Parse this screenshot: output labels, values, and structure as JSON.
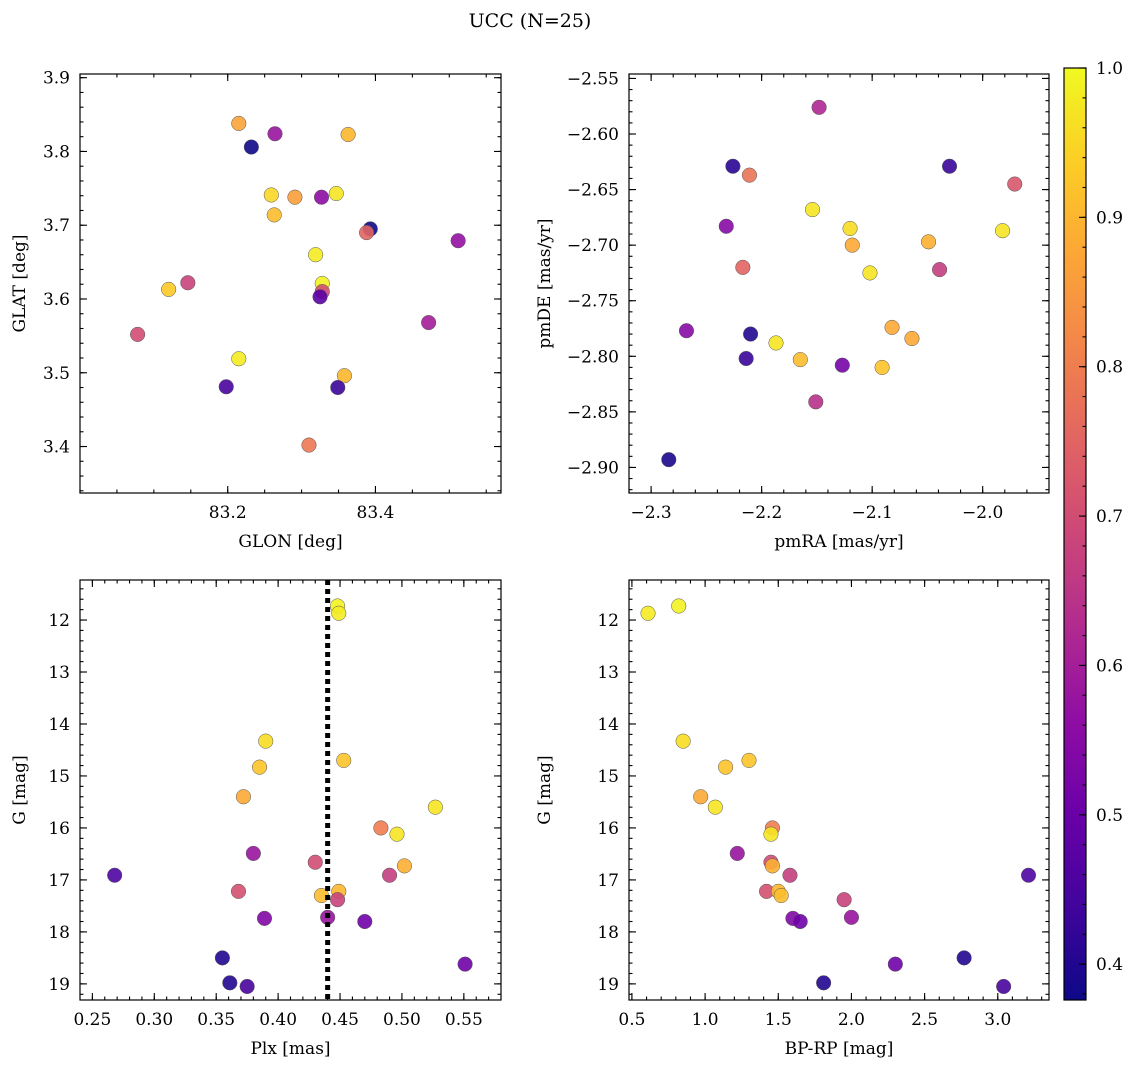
{
  "chart_data": [
    {
      "type": "scatter",
      "xlabel": "GLON [deg]",
      "ylabel": "GLAT [deg]",
      "xlim": [
        83.0,
        83.57
      ],
      "ylim": [
        3.337,
        3.905
      ],
      "xticks": [
        "83.2",
        "83.4"
      ],
      "yticks": [
        "3.4",
        "3.5",
        "3.6",
        "3.7",
        "3.8",
        "3.9"
      ],
      "points": [
        {
          "x": 83.215,
          "y": 3.838,
          "c": 0.87
        },
        {
          "x": 83.264,
          "y": 3.824,
          "c": 0.58
        },
        {
          "x": 83.363,
          "y": 3.823,
          "c": 0.9
        },
        {
          "x": 83.232,
          "y": 3.806,
          "c": 0.38
        },
        {
          "x": 83.259,
          "y": 3.741,
          "c": 0.95
        },
        {
          "x": 83.347,
          "y": 3.743,
          "c": 0.97
        },
        {
          "x": 83.291,
          "y": 3.738,
          "c": 0.86
        },
        {
          "x": 83.327,
          "y": 3.738,
          "c": 0.56
        },
        {
          "x": 83.263,
          "y": 3.714,
          "c": 0.91
        },
        {
          "x": 83.393,
          "y": 3.695,
          "c": 0.38
        },
        {
          "x": 83.388,
          "y": 3.69,
          "c": 0.75
        },
        {
          "x": 83.512,
          "y": 3.679,
          "c": 0.57
        },
        {
          "x": 83.319,
          "y": 3.66,
          "c": 0.98
        },
        {
          "x": 83.146,
          "y": 3.622,
          "c": 0.68
        },
        {
          "x": 83.328,
          "y": 3.621,
          "c": 0.99
        },
        {
          "x": 83.12,
          "y": 3.613,
          "c": 0.93
        },
        {
          "x": 83.328,
          "y": 3.61,
          "c": 0.7
        },
        {
          "x": 83.325,
          "y": 3.603,
          "c": 0.48
        },
        {
          "x": 83.472,
          "y": 3.568,
          "c": 0.6
        },
        {
          "x": 83.078,
          "y": 3.552,
          "c": 0.7
        },
        {
          "x": 83.215,
          "y": 3.519,
          "c": 0.98
        },
        {
          "x": 83.358,
          "y": 3.496,
          "c": 0.9
        },
        {
          "x": 83.198,
          "y": 3.481,
          "c": 0.45
        },
        {
          "x": 83.349,
          "y": 3.48,
          "c": 0.43
        },
        {
          "x": 83.31,
          "y": 3.402,
          "c": 0.79
        }
      ]
    },
    {
      "type": "scatter",
      "xlabel": "pmRA [mas/yr]",
      "ylabel": "pmDE [mas/yr]",
      "xlim": [
        -2.32,
        -1.94
      ],
      "ylim": [
        -2.923,
        -2.546
      ],
      "xticks": [
        "−2.3",
        "−2.2",
        "−2.1",
        "−2.0"
      ],
      "yticks": [
        "−2.55",
        "−2.60",
        "−2.65",
        "−2.70",
        "−2.75",
        "−2.80",
        "−2.85",
        "−2.90"
      ],
      "points": [
        {
          "x": -2.148,
          "y": -2.576,
          "c": 0.62
        },
        {
          "x": -2.226,
          "y": -2.629,
          "c": 0.41
        },
        {
          "x": -2.03,
          "y": -2.629,
          "c": 0.43
        },
        {
          "x": -2.211,
          "y": -2.637,
          "c": 0.78
        },
        {
          "x": -1.971,
          "y": -2.645,
          "c": 0.72
        },
        {
          "x": -2.154,
          "y": -2.668,
          "c": 0.97
        },
        {
          "x": -2.232,
          "y": -2.683,
          "c": 0.55
        },
        {
          "x": -2.12,
          "y": -2.685,
          "c": 0.96
        },
        {
          "x": -1.982,
          "y": -2.687,
          "c": 0.97
        },
        {
          "x": -2.049,
          "y": -2.697,
          "c": 0.89
        },
        {
          "x": -2.118,
          "y": -2.7,
          "c": 0.88
        },
        {
          "x": -2.217,
          "y": -2.72,
          "c": 0.75
        },
        {
          "x": -2.039,
          "y": -2.722,
          "c": 0.67
        },
        {
          "x": -2.102,
          "y": -2.725,
          "c": 0.97
        },
        {
          "x": -2.082,
          "y": -2.774,
          "c": 0.88
        },
        {
          "x": -2.268,
          "y": -2.777,
          "c": 0.55
        },
        {
          "x": -2.21,
          "y": -2.78,
          "c": 0.4
        },
        {
          "x": -2.064,
          "y": -2.784,
          "c": 0.88
        },
        {
          "x": -2.187,
          "y": -2.788,
          "c": 0.97
        },
        {
          "x": -2.214,
          "y": -2.802,
          "c": 0.43
        },
        {
          "x": -2.165,
          "y": -2.803,
          "c": 0.91
        },
        {
          "x": -2.127,
          "y": -2.808,
          "c": 0.52
        },
        {
          "x": -2.091,
          "y": -2.81,
          "c": 0.92
        },
        {
          "x": -2.151,
          "y": -2.841,
          "c": 0.64
        },
        {
          "x": -2.284,
          "y": -2.893,
          "c": 0.39
        }
      ]
    },
    {
      "type": "scatter",
      "xlabel": "Plx [mas]",
      "ylabel": "G [mag]",
      "xlim": [
        0.24,
        0.58
      ],
      "ylim": [
        19.31,
        11.23
      ],
      "xticks": [
        "0.25",
        "0.30",
        "0.35",
        "0.40",
        "0.45",
        "0.50",
        "0.55"
      ],
      "yticks": [
        "12",
        "13",
        "14",
        "15",
        "16",
        "17",
        "18",
        "19"
      ],
      "vline": 0.44,
      "points": [
        {
          "x": 0.448,
          "y": 11.73,
          "c": 0.99
        },
        {
          "x": 0.449,
          "y": 11.87,
          "c": 0.98
        },
        {
          "x": 0.39,
          "y": 14.33,
          "c": 0.96
        },
        {
          "x": 0.453,
          "y": 14.7,
          "c": 0.92
        },
        {
          "x": 0.385,
          "y": 14.83,
          "c": 0.92
        },
        {
          "x": 0.372,
          "y": 15.4,
          "c": 0.88
        },
        {
          "x": 0.527,
          "y": 15.6,
          "c": 0.97
        },
        {
          "x": 0.483,
          "y": 16.0,
          "c": 0.8
        },
        {
          "x": 0.496,
          "y": 16.12,
          "c": 0.97
        },
        {
          "x": 0.38,
          "y": 16.49,
          "c": 0.58
        },
        {
          "x": 0.43,
          "y": 16.66,
          "c": 0.7
        },
        {
          "x": 0.502,
          "y": 16.73,
          "c": 0.89
        },
        {
          "x": 0.268,
          "y": 16.91,
          "c": 0.46
        },
        {
          "x": 0.49,
          "y": 16.91,
          "c": 0.67
        },
        {
          "x": 0.368,
          "y": 17.22,
          "c": 0.71
        },
        {
          "x": 0.449,
          "y": 17.22,
          "c": 0.9
        },
        {
          "x": 0.435,
          "y": 17.3,
          "c": 0.91
        },
        {
          "x": 0.448,
          "y": 17.38,
          "c": 0.68
        },
        {
          "x": 0.44,
          "y": 17.72,
          "c": 0.58
        },
        {
          "x": 0.389,
          "y": 17.74,
          "c": 0.54
        },
        {
          "x": 0.47,
          "y": 17.8,
          "c": 0.51
        },
        {
          "x": 0.355,
          "y": 18.5,
          "c": 0.4
        },
        {
          "x": 0.551,
          "y": 18.62,
          "c": 0.51
        },
        {
          "x": 0.361,
          "y": 18.98,
          "c": 0.4
        },
        {
          "x": 0.375,
          "y": 19.05,
          "c": 0.45
        }
      ]
    },
    {
      "type": "scatter",
      "xlabel": "BP-RP [mag]",
      "ylabel": "G [mag]",
      "xlim": [
        0.48,
        3.35
      ],
      "ylim": [
        19.31,
        11.23
      ],
      "xticks": [
        "0.5",
        "1.0",
        "1.5",
        "2.0",
        "2.5",
        "3.0"
      ],
      "yticks": [
        "12",
        "13",
        "14",
        "15",
        "16",
        "17",
        "18",
        "19"
      ],
      "points": [
        {
          "x": 0.82,
          "y": 11.73,
          "c": 0.99
        },
        {
          "x": 0.61,
          "y": 11.87,
          "c": 0.98
        },
        {
          "x": 0.85,
          "y": 14.33,
          "c": 0.96
        },
        {
          "x": 1.3,
          "y": 14.7,
          "c": 0.92
        },
        {
          "x": 1.14,
          "y": 14.83,
          "c": 0.92
        },
        {
          "x": 0.97,
          "y": 15.4,
          "c": 0.88
        },
        {
          "x": 1.07,
          "y": 15.6,
          "c": 0.97
        },
        {
          "x": 1.46,
          "y": 16.0,
          "c": 0.8
        },
        {
          "x": 1.45,
          "y": 16.12,
          "c": 0.97
        },
        {
          "x": 1.22,
          "y": 16.49,
          "c": 0.58
        },
        {
          "x": 1.45,
          "y": 16.66,
          "c": 0.7
        },
        {
          "x": 1.46,
          "y": 16.73,
          "c": 0.89
        },
        {
          "x": 3.21,
          "y": 16.91,
          "c": 0.46
        },
        {
          "x": 1.58,
          "y": 16.91,
          "c": 0.67
        },
        {
          "x": 1.42,
          "y": 17.22,
          "c": 0.71
        },
        {
          "x": 1.5,
          "y": 17.22,
          "c": 0.9
        },
        {
          "x": 1.52,
          "y": 17.3,
          "c": 0.91
        },
        {
          "x": 1.95,
          "y": 17.38,
          "c": 0.68
        },
        {
          "x": 2.0,
          "y": 17.72,
          "c": 0.58
        },
        {
          "x": 1.6,
          "y": 17.74,
          "c": 0.54
        },
        {
          "x": 1.65,
          "y": 17.8,
          "c": 0.51
        },
        {
          "x": 2.77,
          "y": 18.5,
          "c": 0.4
        },
        {
          "x": 2.3,
          "y": 18.62,
          "c": 0.51
        },
        {
          "x": 1.81,
          "y": 18.98,
          "c": 0.4
        },
        {
          "x": 3.04,
          "y": 19.05,
          "c": 0.45
        }
      ]
    }
  ],
  "figure": {
    "title": "UCC (N=25)",
    "colorbar": {
      "colormap": "plasma",
      "range": [
        0.376,
        1.0
      ],
      "ticks": [
        "0.4",
        "0.5",
        "0.6",
        "0.7",
        "0.8",
        "0.9",
        "1.0"
      ]
    }
  }
}
